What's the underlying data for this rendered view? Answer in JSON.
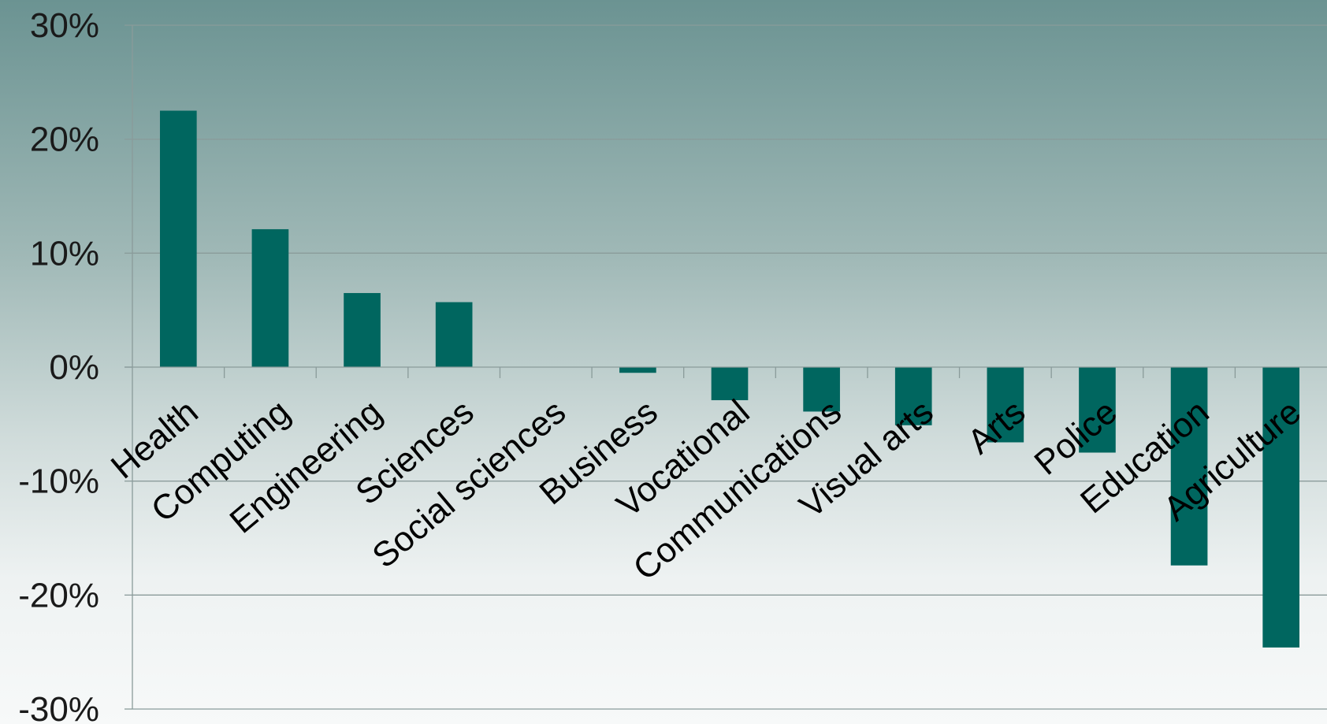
{
  "chart_data": {
    "type": "bar",
    "title": "",
    "xlabel": "",
    "ylabel": "",
    "categories": [
      "Health",
      "Computing",
      "Engineering",
      "Sciences",
      "Social sciences",
      "Business",
      "Vocational",
      "Communications",
      "Visual arts",
      "Arts",
      "Police",
      "Education",
      "Agriculture"
    ],
    "values": [
      22.5,
      12.1,
      6.5,
      5.7,
      0.0,
      -0.5,
      -2.9,
      -3.9,
      -5.1,
      -6.6,
      -7.5,
      -17.4,
      -24.6
    ],
    "ylim": [
      -30,
      30
    ],
    "yticks": [
      30,
      20,
      10,
      0,
      -10,
      -20,
      -30
    ],
    "ytick_labels": [
      "30%",
      "20%",
      "10%",
      "0%",
      "-10%",
      "-20%",
      "-30%"
    ],
    "grid": true,
    "legend": "none",
    "bar_color": "#00665f"
  }
}
